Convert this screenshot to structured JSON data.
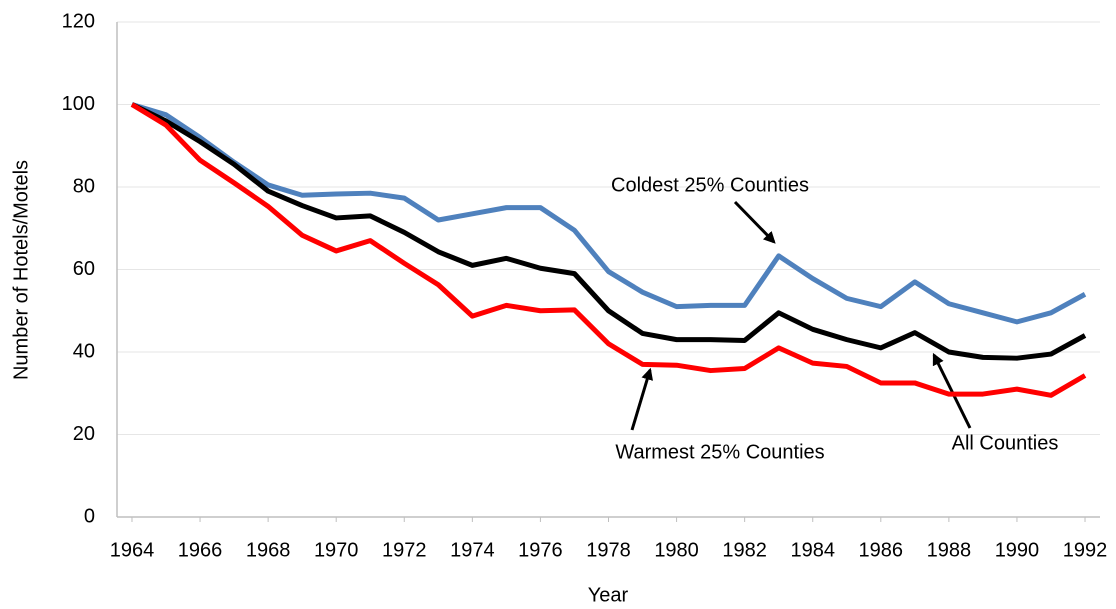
{
  "chart_data": {
    "type": "line",
    "x_label": "Year",
    "y_label": "Number of Hotels/Motels",
    "x": [
      1964,
      1965,
      1966,
      1967,
      1968,
      1969,
      1970,
      1971,
      1972,
      1973,
      1974,
      1975,
      1976,
      1977,
      1978,
      1979,
      1980,
      1981,
      1982,
      1983,
      1984,
      1985,
      1986,
      1987,
      1988,
      1989,
      1990,
      1991,
      1992
    ],
    "series": [
      {
        "name": "Coldest 25% Counties",
        "color": "#4f81bd",
        "values": [
          100,
          97.5,
          92,
          86,
          80.5,
          78,
          78.3,
          78.5,
          77.3,
          72,
          73.5,
          75,
          75,
          69.5,
          59.5,
          54.5,
          51,
          51.3,
          51.3,
          63.3,
          57.8,
          53,
          51,
          57,
          51.7,
          49.5,
          47.3,
          49.5,
          54
        ]
      },
      {
        "name": "All Counties",
        "color": "#000000",
        "values": [
          100,
          96,
          91,
          85.5,
          79,
          75.5,
          72.5,
          73,
          69,
          64.3,
          61,
          62.7,
          60.3,
          59,
          50,
          44.5,
          43,
          43,
          42.8,
          49.5,
          45.5,
          43,
          41,
          44.7,
          40,
          38.7,
          38.5,
          39.5,
          44
        ]
      },
      {
        "name": "Warmest 25% Counties",
        "color": "#ff0000",
        "values": [
          100,
          95,
          86.5,
          81,
          75.3,
          68.3,
          64.5,
          67,
          61.5,
          56.3,
          48.7,
          51.3,
          50,
          50.2,
          42,
          37,
          36.8,
          35.5,
          36,
          41,
          37.3,
          36.5,
          32.5,
          32.5,
          29.8,
          29.8,
          31,
          29.5,
          34.3
        ]
      }
    ],
    "xlim": [
      1963.56,
      1992.44
    ],
    "xticks": [
      1964,
      1966,
      1968,
      1970,
      1972,
      1974,
      1976,
      1978,
      1980,
      1982,
      1984,
      1986,
      1988,
      1990,
      1992
    ],
    "ylim": [
      0,
      120
    ],
    "yticks": [
      0,
      20,
      40,
      60,
      80,
      100,
      120
    ],
    "grid": true
  }
}
